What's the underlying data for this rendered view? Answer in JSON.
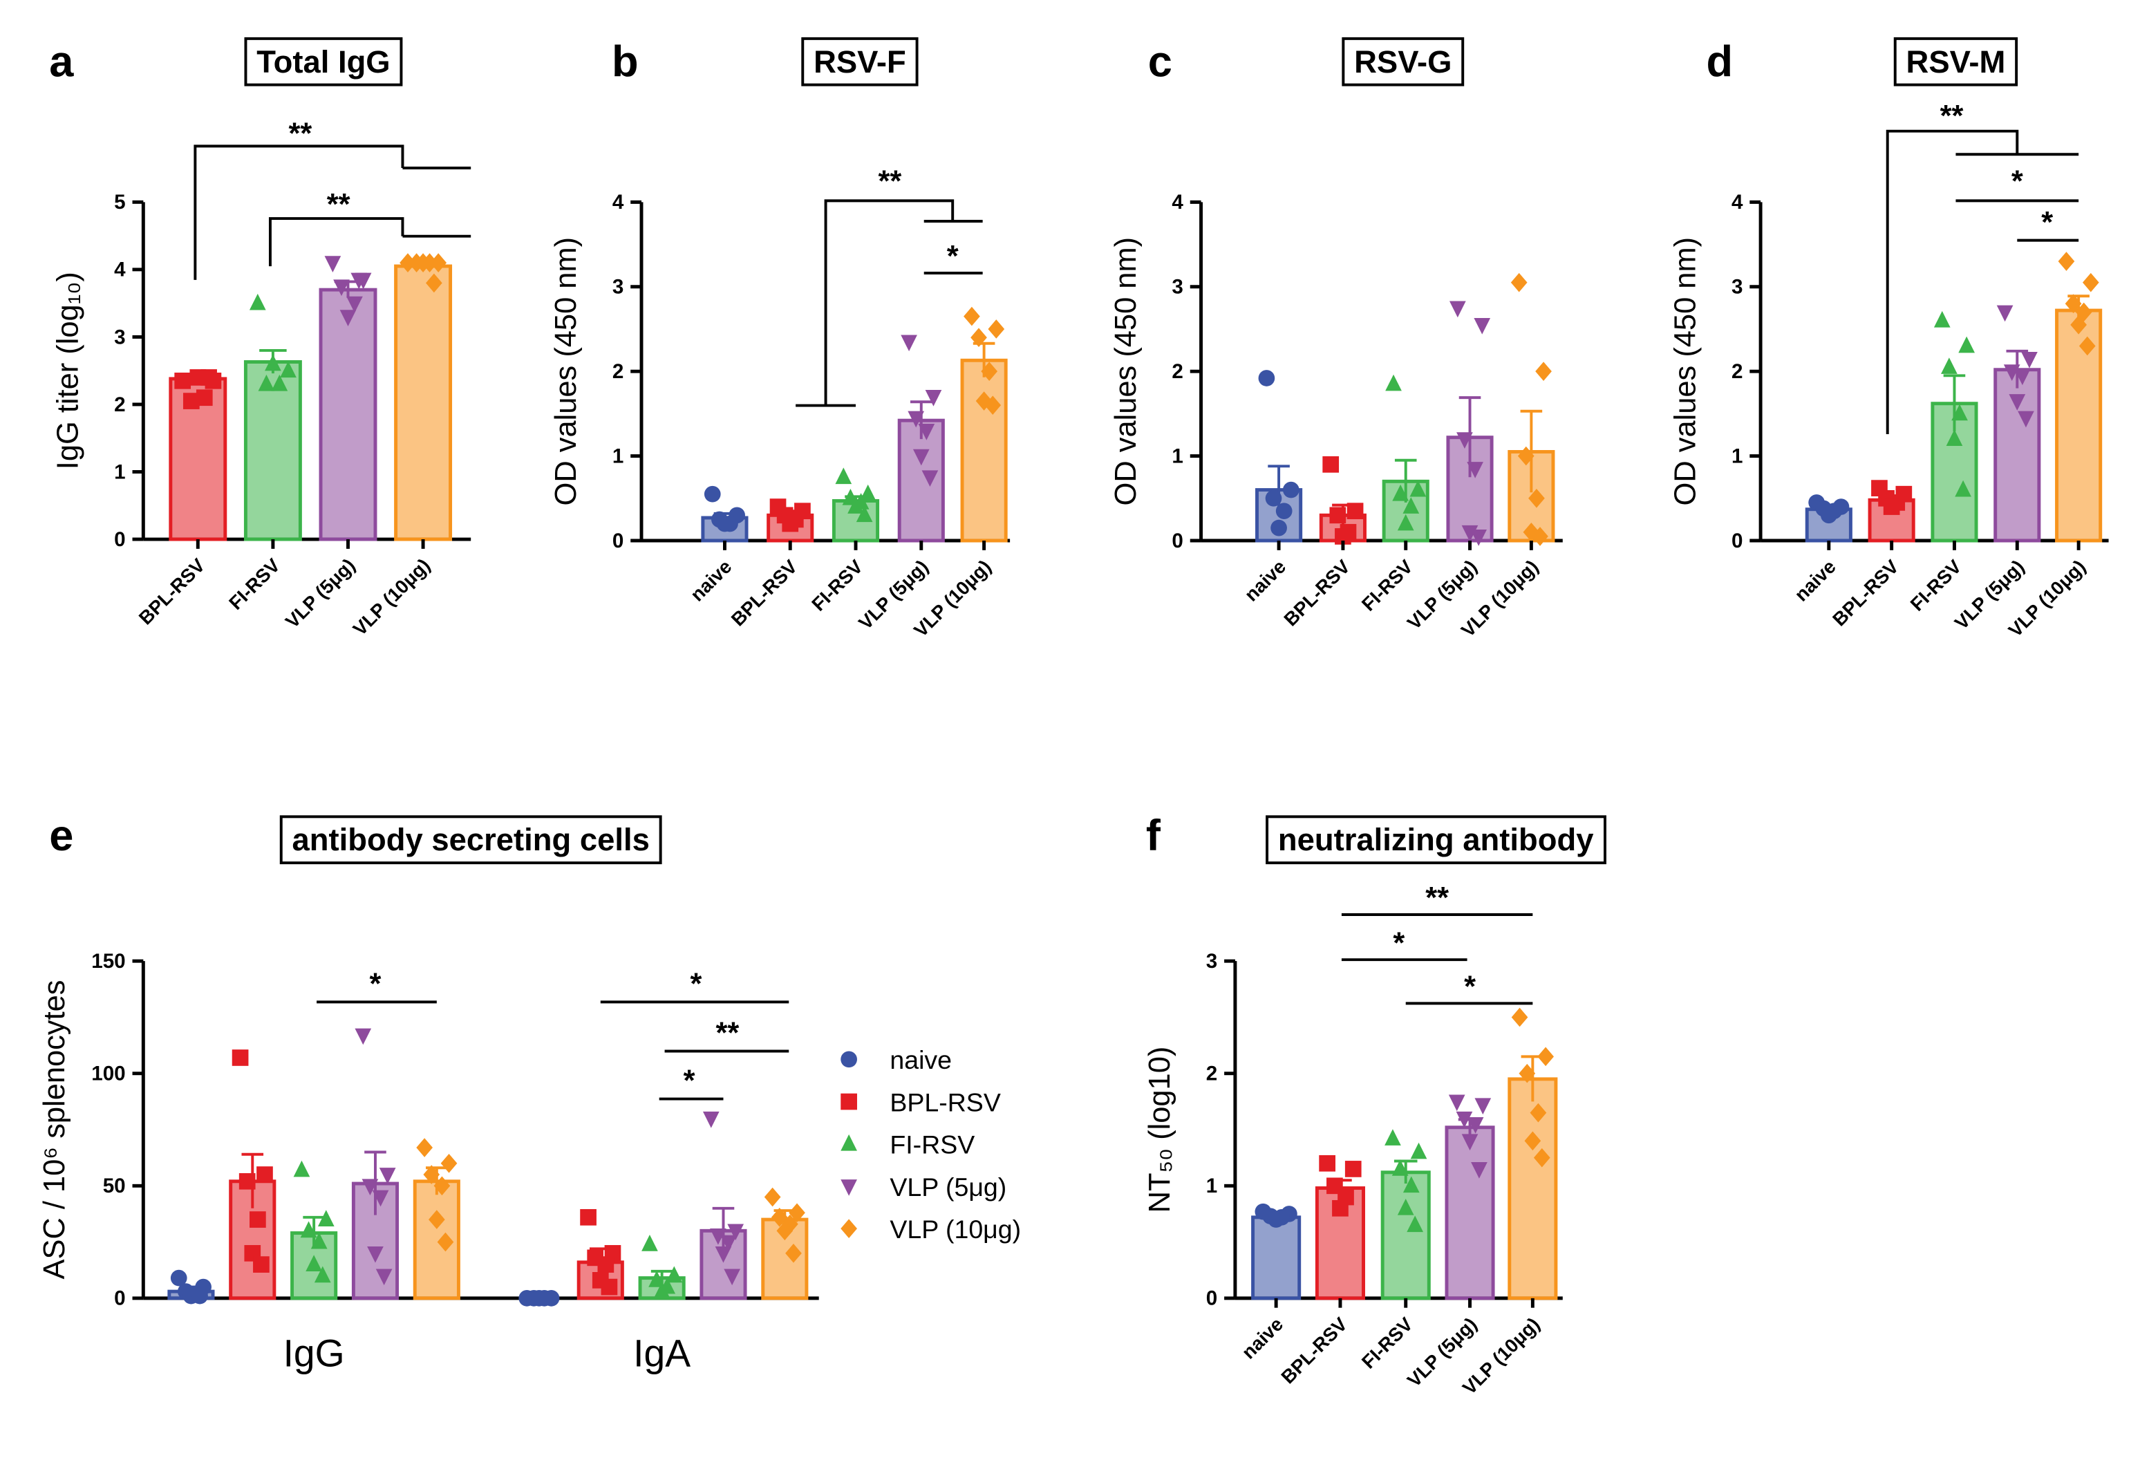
{
  "chart_data": [
    {
      "type": "bar",
      "panel": "a",
      "title": "Total IgG",
      "ylabel": "IgG titer (log₁₀)",
      "categories": [
        "BPL-RSV",
        "FI-RSV",
        "VLP (5μg)",
        "VLP (10μg)"
      ],
      "values": [
        2.38,
        2.63,
        3.7,
        4.05
      ],
      "errors": [
        0.02,
        0.17,
        0.12,
        0.04
      ],
      "points": [
        [
          2.35,
          2.35,
          2.05,
          2.1,
          2.4,
          2.4
        ],
        [
          3.5,
          2.5,
          2.3,
          2.3,
          2.6
        ],
        [
          4.1,
          3.85,
          3.75,
          3.5,
          3.3,
          3.85
        ],
        [
          4.1,
          4.1,
          4.1,
          4.1,
          4.1,
          3.8
        ]
      ],
      "colors": [
        "#e31e24",
        "#3cb44a",
        "#8e4b9d",
        "#f7941d"
      ],
      "markers": [
        "square",
        "triangle",
        "down",
        "diamond"
      ],
      "ylim": [
        0,
        5
      ],
      "yticks": [
        0,
        1,
        2,
        3,
        4,
        5
      ],
      "annotations": [
        "**",
        "**"
      ]
    },
    {
      "type": "bar",
      "panel": "b",
      "title": "RSV-F",
      "ylabel": "OD values (450 nm)",
      "categories": [
        "naive",
        "BPL-RSV",
        "FI-RSV",
        "VLP (5μg)",
        "VLP (10μg)"
      ],
      "values": [
        0.27,
        0.3,
        0.47,
        1.42,
        2.13
      ],
      "errors": [
        0.05,
        0.05,
        0.05,
        0.22,
        0.2
      ],
      "points": [
        [
          0.55,
          0.3,
          0.25,
          0.2,
          0.2
        ],
        [
          0.4,
          0.35,
          0.3,
          0.25,
          0.2
        ],
        [
          0.75,
          0.55,
          0.5,
          0.45,
          0.4,
          0.3
        ],
        [
          2.35,
          1.7,
          1.45,
          1.3,
          1.0,
          0.75
        ],
        [
          2.65,
          2.5,
          2.4,
          2.0,
          1.65,
          1.6
        ]
      ],
      "colors": [
        "#3a53a4",
        "#e31e24",
        "#3cb44a",
        "#8e4b9d",
        "#f7941d"
      ],
      "markers": [
        "circle",
        "square",
        "triangle",
        "down",
        "diamond"
      ],
      "ylim": [
        0,
        4
      ],
      "yticks": [
        0,
        1,
        2,
        3,
        4
      ],
      "annotations": [
        "**",
        "*"
      ]
    },
    {
      "type": "bar",
      "panel": "c",
      "title": "RSV-G",
      "ylabel": "OD values (450 nm)",
      "categories": [
        "naive",
        "BPL-RSV",
        "FI-RSV",
        "VLP (5μg)",
        "VLP (10μg)"
      ],
      "values": [
        0.6,
        0.3,
        0.7,
        1.22,
        1.05
      ],
      "errors": [
        0.28,
        0.12,
        0.25,
        0.47,
        0.48
      ],
      "points": [
        [
          1.92,
          0.6,
          0.5,
          0.35,
          0.15
        ],
        [
          0.9,
          0.35,
          0.3,
          0.1,
          0.05
        ],
        [
          1.85,
          0.6,
          0.55,
          0.4,
          0.2
        ],
        [
          2.75,
          2.55,
          1.2,
          0.85,
          0.1,
          0.05
        ],
        [
          3.05,
          2.0,
          1.0,
          0.5,
          0.1,
          0.05
        ]
      ],
      "colors": [
        "#3a53a4",
        "#e31e24",
        "#3cb44a",
        "#8e4b9d",
        "#f7941d"
      ],
      "markers": [
        "circle",
        "square",
        "triangle",
        "down",
        "diamond"
      ],
      "ylim": [
        0,
        4
      ],
      "yticks": [
        0,
        1,
        2,
        3,
        4
      ],
      "annotations": []
    },
    {
      "type": "bar",
      "panel": "d",
      "title": "RSV-M",
      "ylabel": "OD values (450 nm)",
      "categories": [
        "naive",
        "BPL-RSV",
        "FI-RSV",
        "VLP (5μg)",
        "VLP (10μg)"
      ],
      "values": [
        0.37,
        0.48,
        1.62,
        2.02,
        2.72
      ],
      "errors": [
        0.03,
        0.04,
        0.33,
        0.22,
        0.17
      ],
      "points": [
        [
          0.45,
          0.4,
          0.38,
          0.35,
          0.3
        ],
        [
          0.62,
          0.55,
          0.5,
          0.45,
          0.4
        ],
        [
          2.6,
          2.3,
          2.05,
          1.5,
          1.2,
          0.6
        ],
        [
          2.7,
          2.15,
          2.0,
          1.95,
          1.65,
          1.45
        ],
        [
          3.3,
          3.05,
          2.8,
          2.7,
          2.55,
          2.3
        ]
      ],
      "colors": [
        "#3a53a4",
        "#e31e24",
        "#3cb44a",
        "#8e4b9d",
        "#f7941d"
      ],
      "markers": [
        "circle",
        "square",
        "triangle",
        "down",
        "diamond"
      ],
      "ylim": [
        0,
        4
      ],
      "yticks": [
        0,
        1,
        2,
        3,
        4
      ],
      "annotations": [
        "**",
        "*",
        "*"
      ]
    },
    {
      "type": "grouped_bar",
      "panel": "e",
      "title": "antibody secreting cells",
      "ylabel": "ASC / 10⁶ splenocytes",
      "categories": [
        "IgG",
        "IgA"
      ],
      "series": [
        {
          "name": "naive",
          "color": "#3a53a4",
          "marker": "circle",
          "values": [
            3,
            0
          ],
          "errors": [
            2,
            0
          ],
          "points": [
            [
              9,
              5,
              3,
              2,
              1,
              1
            ],
            [
              0,
              0,
              0,
              0,
              0
            ]
          ]
        },
        {
          "name": "BPL-RSV",
          "color": "#e31e24",
          "marker": "square",
          "values": [
            52,
            16
          ],
          "errors": [
            12,
            6
          ],
          "points": [
            [
              107,
              55,
              52,
              35,
              20,
              15
            ],
            [
              36,
              20,
              18,
              15,
              8,
              5
            ]
          ]
        },
        {
          "name": "FI-RSV",
          "color": "#3cb44a",
          "marker": "triangle",
          "values": [
            29,
            9
          ],
          "errors": [
            7,
            3
          ],
          "points": [
            [
              57,
              35,
              30,
              25,
              15,
              10
            ],
            [
              24,
              10,
              8,
              5,
              3
            ]
          ]
        },
        {
          "name": "VLP (5μg)",
          "color": "#8e4b9d",
          "marker": "down",
          "values": [
            51,
            30
          ],
          "errors": [
            14,
            10
          ],
          "points": [
            [
              117,
              55,
              50,
              45,
              20,
              10
            ],
            [
              80,
              30,
              28,
              25,
              20,
              10
            ]
          ]
        },
        {
          "name": "VLP (10μg)",
          "color": "#f7941d",
          "marker": "diamond",
          "values": [
            52,
            35
          ],
          "errors": [
            6,
            4
          ],
          "points": [
            [
              67,
              60,
              55,
              50,
              35,
              25
            ],
            [
              45,
              38,
              36,
              33,
              30,
              20
            ]
          ]
        }
      ],
      "legend": "right",
      "ylim": [
        0,
        150
      ],
      "yticks": [
        0,
        50,
        100,
        150
      ],
      "annotations": [
        "*",
        "*",
        "**",
        "*"
      ]
    },
    {
      "type": "bar",
      "panel": "f",
      "title": "neutralizing antibody",
      "ylabel": "NT₅₀ (log10)",
      "categories": [
        "naive",
        "BPL-RSV",
        "FI-RSV",
        "VLP (5μg)",
        "VLP (10μg)"
      ],
      "values": [
        0.72,
        0.98,
        1.12,
        1.52,
        1.95
      ],
      "errors": [
        0.02,
        0.07,
        0.1,
        0.07,
        0.2
      ],
      "points": [
        [
          0.77,
          0.75,
          0.73,
          0.72,
          0.7
        ],
        [
          1.2,
          1.15,
          1.0,
          0.9,
          0.8
        ],
        [
          1.42,
          1.3,
          1.15,
          1.0,
          0.8,
          0.65
        ],
        [
          1.75,
          1.72,
          1.6,
          1.55,
          1.4,
          1.15
        ],
        [
          2.5,
          2.15,
          2.0,
          1.65,
          1.4,
          1.25
        ]
      ],
      "colors": [
        "#3a53a4",
        "#e31e24",
        "#3cb44a",
        "#8e4b9d",
        "#f7941d"
      ],
      "markers": [
        "circle",
        "square",
        "triangle",
        "down",
        "diamond"
      ],
      "ylim": [
        0,
        3
      ],
      "yticks": [
        0,
        1,
        2,
        3
      ],
      "annotations": [
        "**",
        "*",
        "*"
      ]
    }
  ]
}
